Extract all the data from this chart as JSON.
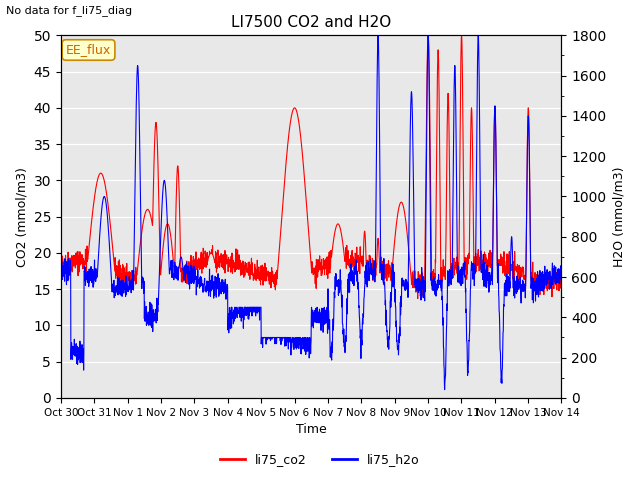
{
  "title": "LI7500 CO2 and H2O",
  "suptitle": "No data for f_li75_diag",
  "xlabel": "Time",
  "ylabel_left": "CO2 (mmol/m3)",
  "ylabel_right": "H2O (mmol/m3)",
  "ylim_left": [
    0,
    50
  ],
  "ylim_right": [
    0,
    1800
  ],
  "legend_entries": [
    "li75_co2",
    "li75_h2o"
  ],
  "legend_colors": [
    "red",
    "blue"
  ],
  "box_label": "EE_flux",
  "figsize": [
    6.4,
    4.8
  ],
  "dpi": 100,
  "n_days": 15,
  "seed": 42,
  "tick_labels": [
    "Oct 30",
    "Oct 31",
    "Nov 1",
    "Nov 2",
    "Nov 3",
    "Nov 4",
    "Nov 5",
    "Nov 6",
    "Nov 7",
    "Nov 8",
    "Nov 9",
    "Nov 10",
    "Nov 11",
    "Nov 12",
    "Nov 13",
    "Nov 14"
  ]
}
